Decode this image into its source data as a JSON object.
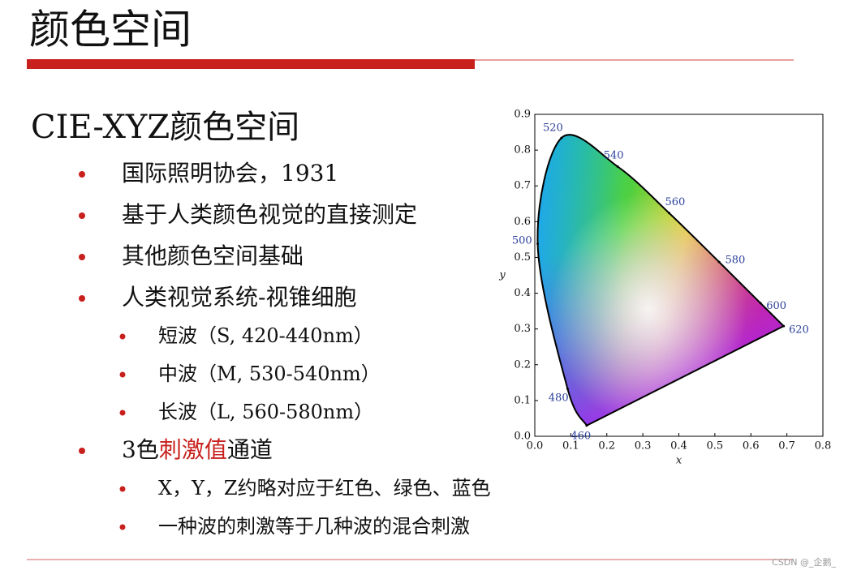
{
  "header": {
    "title": "颜色空间"
  },
  "heading": "CIE-XYZ颜色空间",
  "items": [
    {
      "level": 1,
      "runs": [
        {
          "text": "国际照明协会，1931"
        }
      ]
    },
    {
      "level": 1,
      "runs": [
        {
          "text": "基于人类颜色视觉的直接测定"
        }
      ]
    },
    {
      "level": 1,
      "runs": [
        {
          "text": "其他颜色空间基础"
        }
      ]
    },
    {
      "level": 1,
      "runs": [
        {
          "text": "人类视觉系统-视锥细胞"
        }
      ]
    },
    {
      "level": 2,
      "runs": [
        {
          "text": "短波（S, 420-440nm）"
        }
      ]
    },
    {
      "level": 2,
      "runs": [
        {
          "text": "中波（M, 530-540nm）"
        }
      ]
    },
    {
      "level": 2,
      "runs": [
        {
          "text": "长波（L, 560-580nm）"
        }
      ]
    },
    {
      "level": 1,
      "runs": [
        {
          "text": "3色"
        },
        {
          "text": "刺激值",
          "highlight": true
        },
        {
          "text": "通道"
        }
      ]
    },
    {
      "level": 2,
      "runs": [
        {
          "text": "X，Y，Z约略对应于红色、绿色、蓝色"
        }
      ]
    },
    {
      "level": 2,
      "runs": [
        {
          "text": "一种波的刺激等于几种波的混合刺激"
        }
      ]
    }
  ],
  "diagram": {
    "xlabel": "x",
    "ylabel": "y",
    "xlim": [
      0,
      0.8
    ],
    "ylim": [
      0,
      0.9
    ],
    "xticks": [
      {
        "value": 0,
        "label": "0.0"
      },
      0.1,
      0.2,
      0.3,
      0.4,
      0.5,
      0.6,
      0.7,
      0.8
    ],
    "yticks": [
      {
        "value": 0,
        "label": "0.0"
      },
      0.1,
      0.2,
      0.3,
      0.4,
      0.5,
      0.6,
      0.7,
      0.8,
      0.9
    ],
    "points": [
      {
        "label": 460,
        "x": 0.144,
        "y": 0.03
      },
      {
        "label": 480,
        "x": 0.091,
        "y": 0.133
      },
      {
        "label": 500,
        "x": 0.008,
        "y": 0.538
      },
      {
        "label": 520,
        "x": 0.074,
        "y": 0.834
      },
      {
        "label": 540,
        "x": 0.23,
        "y": 0.754
      },
      {
        "label": 560,
        "x": 0.373,
        "y": 0.624
      },
      {
        "label": 580,
        "x": 0.512,
        "y": 0.487
      },
      {
        "label": 600,
        "x": 0.627,
        "y": 0.372
      },
      {
        "label": 620,
        "x": 0.691,
        "y": 0.308
      }
    ]
  },
  "watermark": "CSDN @_企鹅_"
}
